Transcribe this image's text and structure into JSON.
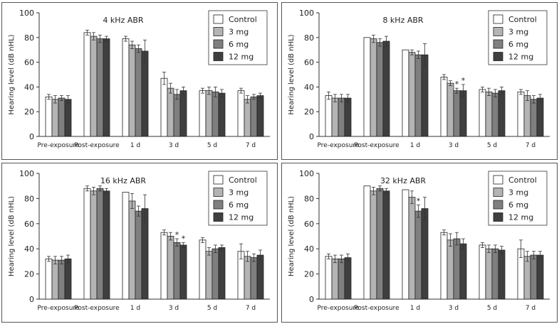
{
  "figure": {
    "groups": [
      "Pre-exposure",
      "Post-exposure",
      "1 d",
      "3 d",
      "5 d",
      "7 d"
    ],
    "legend": [
      {
        "name": "Control",
        "color": "#ffffff"
      },
      {
        "name": "3 mg",
        "color": "#b4b4b4"
      },
      {
        "name": "6 mg",
        "color": "#7f7f7f"
      },
      {
        "name": "12 mg",
        "color": "#3f3f3f"
      }
    ],
    "ylabel": "Hearing level (dB nHL)"
  },
  "chart_data": [
    {
      "type": "bar",
      "title": "4 kHz ABR",
      "ylabel": "Hearing level (dB nHL)",
      "ylim": [
        0,
        100
      ],
      "yticks": [
        0,
        20,
        40,
        60,
        80,
        100
      ],
      "categories": [
        "Pre-exposure",
        "Post-exposure",
        "1 d",
        "3 d",
        "5 d",
        "7 d"
      ],
      "series": [
        {
          "name": "Control",
          "values": [
            32,
            84,
            79,
            47,
            37,
            37
          ],
          "errors": [
            2,
            2,
            2,
            5,
            2,
            2
          ]
        },
        {
          "name": "3 mg",
          "values": [
            30,
            81,
            74,
            39,
            37,
            30
          ],
          "errors": [
            3,
            3,
            3,
            4,
            3,
            3
          ]
        },
        {
          "name": "6 mg",
          "values": [
            31,
            79,
            71,
            34,
            36,
            32
          ],
          "errors": [
            2,
            3,
            3,
            4,
            4,
            2
          ]
        },
        {
          "name": "12 mg",
          "values": [
            30,
            79,
            69,
            37,
            35,
            33
          ],
          "errors": [
            3,
            2,
            9,
            3,
            3,
            2
          ]
        }
      ],
      "annotations": []
    },
    {
      "type": "bar",
      "title": "8 kHz ABR",
      "ylabel": "Hearing level (dB nHL)",
      "ylim": [
        0,
        100
      ],
      "yticks": [
        0,
        20,
        40,
        60,
        80,
        100
      ],
      "categories": [
        "Pre-exposure",
        "Post-exposure",
        "1 d",
        "3 d",
        "5 d",
        "7 d"
      ],
      "series": [
        {
          "name": "Control",
          "values": [
            33,
            80,
            70,
            48,
            38,
            36
          ],
          "errors": [
            3,
            0,
            0,
            2,
            2,
            2
          ]
        },
        {
          "name": "3 mg",
          "values": [
            31,
            79,
            68,
            43,
            36,
            33
          ],
          "errors": [
            3,
            3,
            2,
            2,
            3,
            4
          ]
        },
        {
          "name": "6 mg",
          "values": [
            31,
            76,
            66,
            37,
            35,
            30
          ],
          "errors": [
            3,
            3,
            3,
            2,
            3,
            3
          ]
        },
        {
          "name": "12 mg",
          "values": [
            31,
            77,
            66,
            37,
            37,
            31
          ],
          "errors": [
            3,
            4,
            9,
            5,
            3,
            3
          ]
        }
      ],
      "annotations": [
        {
          "category": "3 d",
          "series": "6 mg",
          "text": "*"
        },
        {
          "category": "3 d",
          "series": "12 mg",
          "text": "*"
        }
      ]
    },
    {
      "type": "bar",
      "title": "16 kHz ABR",
      "ylabel": "Hearing level (dB nHL)",
      "ylim": [
        0,
        100
      ],
      "yticks": [
        0,
        20,
        40,
        60,
        80,
        100
      ],
      "categories": [
        "Pre-exposure",
        "Post-exposure",
        "1 d",
        "3 d",
        "5 d",
        "7 d"
      ],
      "series": [
        {
          "name": "Control",
          "values": [
            32,
            88,
            85,
            53,
            47,
            38
          ],
          "errors": [
            2,
            2,
            0,
            2,
            2,
            6
          ]
        },
        {
          "name": "3 mg",
          "values": [
            31,
            86,
            78,
            50,
            38,
            34
          ],
          "errors": [
            3,
            3,
            6,
            3,
            3,
            4
          ]
        },
        {
          "name": "6 mg",
          "values": [
            31,
            88,
            70,
            45,
            40,
            33
          ],
          "errors": [
            3,
            2,
            4,
            3,
            3,
            3
          ]
        },
        {
          "name": "12 mg",
          "values": [
            32,
            86,
            72,
            43,
            41,
            35
          ],
          "errors": [
            3,
            2,
            11,
            2,
            2,
            4
          ]
        }
      ],
      "annotations": [
        {
          "category": "3 d",
          "series": "6 mg",
          "text": "*"
        },
        {
          "category": "3 d",
          "series": "12 mg",
          "text": "*"
        }
      ]
    },
    {
      "type": "bar",
      "title": "32 kHz ABR",
      "ylabel": "Hearing level (dB nHL)",
      "ylim": [
        0,
        100
      ],
      "yticks": [
        0,
        20,
        40,
        60,
        80,
        100
      ],
      "categories": [
        "Pre-exposure",
        "Post-exposure",
        "1 d",
        "3 d",
        "5 d",
        "7 d"
      ],
      "series": [
        {
          "name": "Control",
          "values": [
            34,
            90,
            87,
            53,
            43,
            40
          ],
          "errors": [
            2,
            0,
            0,
            2,
            2,
            7
          ]
        },
        {
          "name": "3 mg",
          "values": [
            32,
            86,
            81,
            47,
            40,
            34
          ],
          "errors": [
            3,
            3,
            5,
            5,
            3,
            4
          ]
        },
        {
          "name": "6 mg",
          "values": [
            32,
            88,
            70,
            48,
            40,
            35
          ],
          "errors": [
            3,
            2,
            5,
            5,
            3,
            3
          ]
        },
        {
          "name": "12 mg",
          "values": [
            33,
            86,
            72,
            44,
            39,
            35
          ],
          "errors": [
            3,
            2,
            9,
            4,
            3,
            3
          ]
        }
      ],
      "annotations": [
        {
          "category": "1 d",
          "series": "6 mg",
          "text": "*"
        }
      ]
    }
  ]
}
